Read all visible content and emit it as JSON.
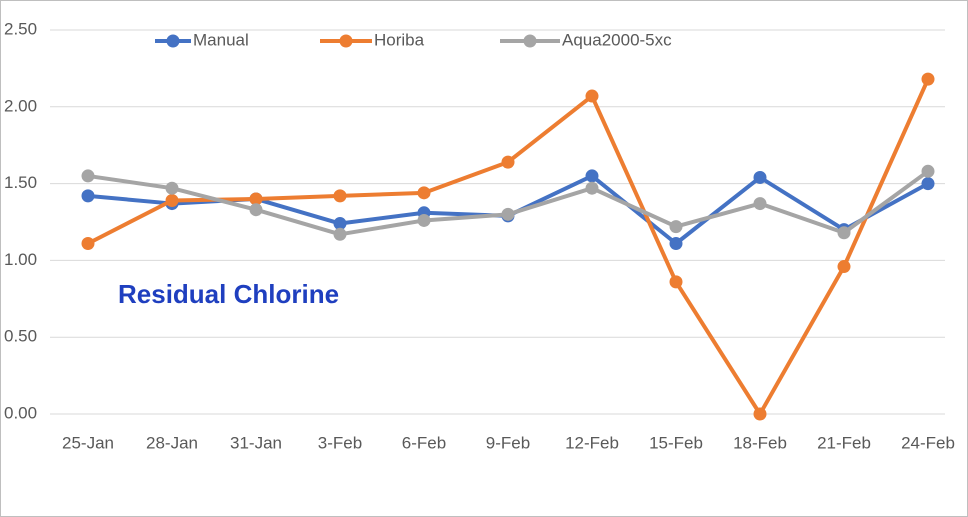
{
  "chart_data": {
    "type": "line",
    "annotation": "Residual Chlorine",
    "categories": [
      "25-Jan",
      "28-Jan",
      "31-Jan",
      "3-Feb",
      "6-Feb",
      "9-Feb",
      "12-Feb",
      "15-Feb",
      "18-Feb",
      "21-Feb",
      "24-Feb"
    ],
    "series": [
      {
        "name": "Manual",
        "color": "#4472c4",
        "values": [
          1.42,
          1.37,
          1.4,
          1.24,
          1.31,
          1.29,
          1.55,
          1.11,
          1.54,
          1.2,
          1.5
        ]
      },
      {
        "name": "Horiba",
        "color": "#ed7d31",
        "values": [
          1.11,
          1.39,
          1.4,
          1.42,
          1.44,
          1.64,
          2.07,
          0.86,
          0.0,
          0.96,
          2.18
        ]
      },
      {
        "name": "Aqua2000-5xc",
        "color": "#a5a5a5",
        "values": [
          1.55,
          1.47,
          1.33,
          1.17,
          1.26,
          1.3,
          1.47,
          1.22,
          1.37,
          1.18,
          1.58
        ]
      }
    ],
    "ylim": [
      0,
      2.5
    ],
    "yticks": [
      {
        "value": 0,
        "label": "0.00"
      },
      {
        "value": 0.5,
        "label": "0.50"
      },
      {
        "value": 1,
        "label": "1.00"
      },
      {
        "value": 1.5,
        "label": "1.50"
      },
      {
        "value": 2,
        "label": "2.00"
      },
      {
        "value": 2.5,
        "label": "2.50"
      }
    ],
    "grid": true,
    "legend": "top"
  }
}
